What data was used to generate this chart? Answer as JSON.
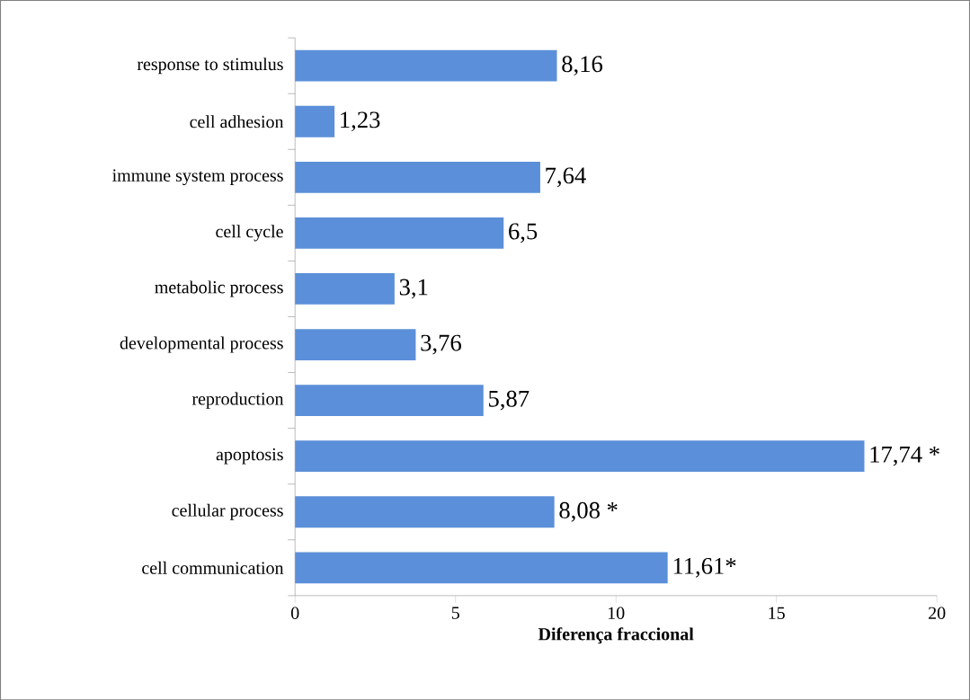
{
  "chart_data": {
    "type": "bar",
    "orientation": "horizontal",
    "xlabel": "Diferença fraccional",
    "categories": [
      "response to stimulus",
      "cell adhesion",
      "immune system process",
      "cell cycle",
      "metabolic process",
      "developmental process",
      "reproduction",
      "apoptosis",
      "cellular process",
      "cell communication"
    ],
    "values": [
      8.16,
      1.23,
      7.64,
      6.5,
      3.1,
      3.76,
      5.87,
      17.74,
      8.08,
      11.61
    ],
    "value_labels": [
      "8,16",
      "1,23",
      "7,64",
      "6,5",
      "3,1",
      "3,76",
      "5,87",
      "17,74 *",
      "8,08 *",
      "11,61*"
    ],
    "color": "#5b8fd9",
    "xlim": [
      0,
      20
    ],
    "xticks": [
      0,
      5,
      10,
      15,
      20
    ],
    "grid": false
  }
}
